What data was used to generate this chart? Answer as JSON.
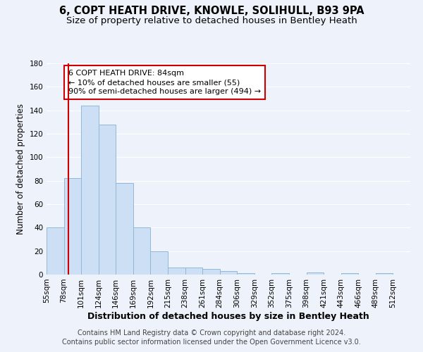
{
  "title": "6, COPT HEATH DRIVE, KNOWLE, SOLIHULL, B93 9PA",
  "subtitle": "Size of property relative to detached houses in Bentley Heath",
  "xlabel": "Distribution of detached houses by size in Bentley Heath",
  "ylabel": "Number of detached properties",
  "footer_line1": "Contains HM Land Registry data © Crown copyright and database right 2024.",
  "footer_line2": "Contains public sector information licensed under the Open Government Licence v3.0.",
  "bin_labels": [
    "55sqm",
    "78sqm",
    "101sqm",
    "124sqm",
    "146sqm",
    "169sqm",
    "192sqm",
    "215sqm",
    "238sqm",
    "261sqm",
    "284sqm",
    "306sqm",
    "329sqm",
    "352sqm",
    "375sqm",
    "398sqm",
    "421sqm",
    "443sqm",
    "466sqm",
    "489sqm",
    "512sqm"
  ],
  "bar_values": [
    40,
    82,
    144,
    128,
    78,
    40,
    20,
    6,
    6,
    5,
    3,
    1,
    0,
    1,
    0,
    2,
    0,
    1,
    0,
    1,
    0
  ],
  "bar_color": "#ccdff5",
  "bar_edge_color": "#90b8d8",
  "vline_color": "#cc0000",
  "annotation_line1": "6 COPT HEATH DRIVE: 84sqm",
  "annotation_line2": "← 10% of detached houses are smaller (55)",
  "annotation_line3": "90% of semi-detached houses are larger (494) →",
  "box_edge_color": "#cc0000",
  "ylim": [
    0,
    180
  ],
  "yticks": [
    0,
    20,
    40,
    60,
    80,
    100,
    120,
    140,
    160,
    180
  ],
  "background_color": "#eef2fa",
  "grid_color": "#ffffff",
  "title_fontsize": 10.5,
  "subtitle_fontsize": 9.5,
  "xlabel_fontsize": 9,
  "ylabel_fontsize": 8.5,
  "tick_fontsize": 7.5,
  "annotation_fontsize": 8,
  "footer_fontsize": 7
}
